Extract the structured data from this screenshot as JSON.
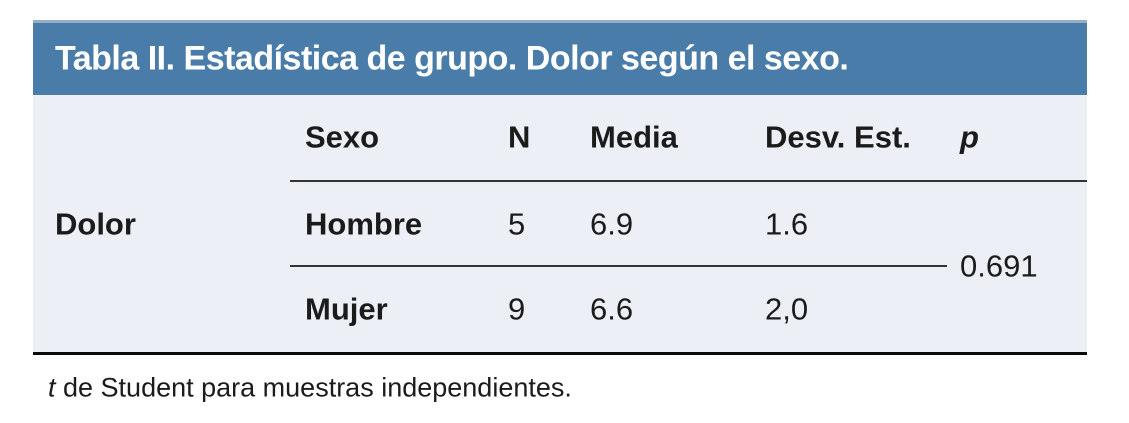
{
  "title": "Tabla II. Estadística de grupo. Dolor según el sexo.",
  "table": {
    "row_group_label": "Dolor",
    "columns": {
      "sexo": "Sexo",
      "n": "N",
      "media": "Media",
      "desv": "Desv. Est.",
      "p": "p"
    },
    "rows": [
      {
        "sexo": "Hombre",
        "n": "5",
        "media": "6.9",
        "desv": "1.6"
      },
      {
        "sexo": "Mujer",
        "n": "9",
        "media": "6.6",
        "desv": "2,0"
      }
    ],
    "p_value": "0.691"
  },
  "footnote": {
    "italic_t": "t",
    "rest": " de Student para muestras independientes."
  },
  "colors": {
    "header_bar": "#4a7ca9",
    "header_bar_top_edge": "#92aecb",
    "table_background": "#edeff6",
    "rule": "#333333",
    "bottom_rule": "#0a0a0a",
    "title_text": "#ffffff",
    "body_text": "#1b1b1b"
  }
}
